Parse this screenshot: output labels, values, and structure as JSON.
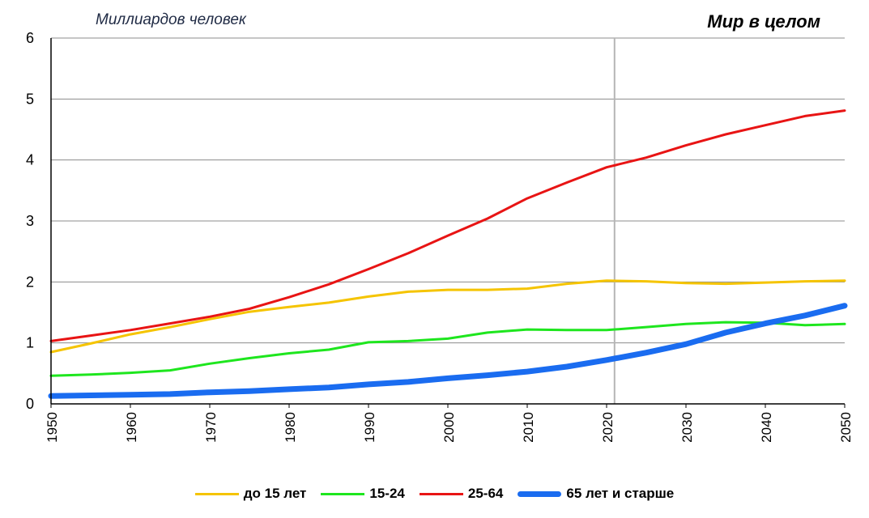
{
  "chart_data": {
    "type": "line",
    "title": "Мир в целом",
    "ylabel": "Миллиардов человек",
    "xlabel": "",
    "xlim": [
      1950,
      2050
    ],
    "ylim": [
      0,
      6
    ],
    "x_ticks": [
      1950,
      1960,
      1970,
      1980,
      1990,
      2000,
      2010,
      2020,
      2030,
      2040,
      2050
    ],
    "y_ticks": [
      0,
      1,
      2,
      3,
      4,
      5,
      6
    ],
    "grid": true,
    "vertical_marker_x": 2021,
    "legend_position": "bottom",
    "x": [
      1950,
      1955,
      1960,
      1965,
      1970,
      1975,
      1980,
      1985,
      1990,
      1995,
      2000,
      2005,
      2010,
      2015,
      2020,
      2025,
      2030,
      2035,
      2040,
      2045,
      2050
    ],
    "series": [
      {
        "name": "до 15 лет",
        "color": "#f5c400",
        "width": 3,
        "values": [
          0.85,
          0.99,
          1.14,
          1.26,
          1.39,
          1.51,
          1.59,
          1.66,
          1.76,
          1.84,
          1.87,
          1.87,
          1.89,
          1.97,
          2.02,
          2.01,
          1.98,
          1.97,
          1.99,
          2.01,
          2.02
        ]
      },
      {
        "name": "15-24",
        "color": "#1ee61e",
        "width": 3,
        "values": [
          0.46,
          0.48,
          0.51,
          0.55,
          0.66,
          0.75,
          0.83,
          0.89,
          1.01,
          1.03,
          1.07,
          1.17,
          1.22,
          1.21,
          1.21,
          1.26,
          1.31,
          1.34,
          1.33,
          1.29,
          1.31
        ]
      },
      {
        "name": "25-64",
        "color": "#e81414",
        "width": 3,
        "values": [
          1.03,
          1.12,
          1.21,
          1.32,
          1.43,
          1.56,
          1.75,
          1.96,
          2.21,
          2.47,
          2.76,
          3.04,
          3.37,
          3.63,
          3.88,
          4.04,
          4.24,
          4.42,
          4.57,
          4.72,
          4.81
        ]
      },
      {
        "name": "65 лет и старше",
        "color": "#1a6cf0",
        "width": 7,
        "values": [
          0.13,
          0.14,
          0.15,
          0.16,
          0.19,
          0.21,
          0.24,
          0.27,
          0.32,
          0.36,
          0.42,
          0.47,
          0.53,
          0.61,
          0.72,
          0.84,
          0.98,
          1.17,
          1.32,
          1.45,
          1.61
        ]
      }
    ]
  }
}
